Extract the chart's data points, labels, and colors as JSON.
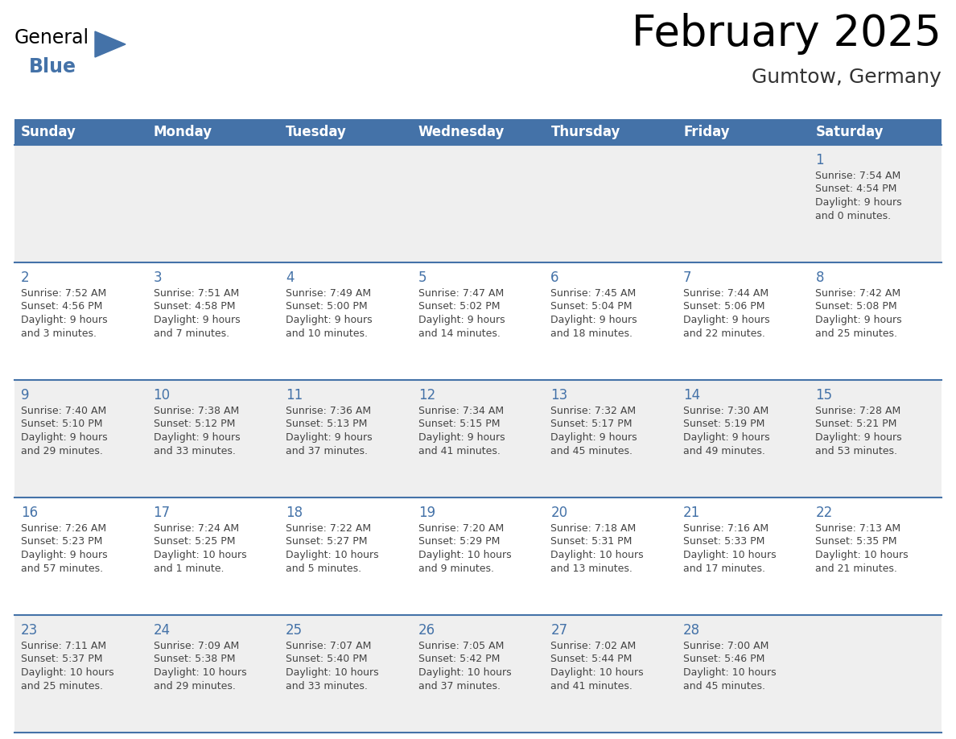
{
  "title": "February 2025",
  "subtitle": "Gumtow, Germany",
  "days_of_week": [
    "Sunday",
    "Monday",
    "Tuesday",
    "Wednesday",
    "Thursday",
    "Friday",
    "Saturday"
  ],
  "header_bg": "#4472a8",
  "header_text": "#ffffff",
  "row_bg_colors": [
    "#efefef",
    "#ffffff",
    "#efefef",
    "#ffffff",
    "#efefef"
  ],
  "day_number_color": "#4472a8",
  "text_color": "#444444",
  "line_color": "#4472a8",
  "title_fontsize": 38,
  "subtitle_fontsize": 18,
  "header_fontsize": 12,
  "day_num_fontsize": 12,
  "cell_text_fontsize": 9,
  "calendar_data": [
    [
      {
        "day": null,
        "sunrise": null,
        "sunset": null,
        "daylight": null
      },
      {
        "day": null,
        "sunrise": null,
        "sunset": null,
        "daylight": null
      },
      {
        "day": null,
        "sunrise": null,
        "sunset": null,
        "daylight": null
      },
      {
        "day": null,
        "sunrise": null,
        "sunset": null,
        "daylight": null
      },
      {
        "day": null,
        "sunrise": null,
        "sunset": null,
        "daylight": null
      },
      {
        "day": null,
        "sunrise": null,
        "sunset": null,
        "daylight": null
      },
      {
        "day": 1,
        "sunrise": "7:54 AM",
        "sunset": "4:54 PM",
        "daylight_l1": "Daylight: 9 hours",
        "daylight_l2": "and 0 minutes."
      }
    ],
    [
      {
        "day": 2,
        "sunrise": "7:52 AM",
        "sunset": "4:56 PM",
        "daylight_l1": "Daylight: 9 hours",
        "daylight_l2": "and 3 minutes."
      },
      {
        "day": 3,
        "sunrise": "7:51 AM",
        "sunset": "4:58 PM",
        "daylight_l1": "Daylight: 9 hours",
        "daylight_l2": "and 7 minutes."
      },
      {
        "day": 4,
        "sunrise": "7:49 AM",
        "sunset": "5:00 PM",
        "daylight_l1": "Daylight: 9 hours",
        "daylight_l2": "and 10 minutes."
      },
      {
        "day": 5,
        "sunrise": "7:47 AM",
        "sunset": "5:02 PM",
        "daylight_l1": "Daylight: 9 hours",
        "daylight_l2": "and 14 minutes."
      },
      {
        "day": 6,
        "sunrise": "7:45 AM",
        "sunset": "5:04 PM",
        "daylight_l1": "Daylight: 9 hours",
        "daylight_l2": "and 18 minutes."
      },
      {
        "day": 7,
        "sunrise": "7:44 AM",
        "sunset": "5:06 PM",
        "daylight_l1": "Daylight: 9 hours",
        "daylight_l2": "and 22 minutes."
      },
      {
        "day": 8,
        "sunrise": "7:42 AM",
        "sunset": "5:08 PM",
        "daylight_l1": "Daylight: 9 hours",
        "daylight_l2": "and 25 minutes."
      }
    ],
    [
      {
        "day": 9,
        "sunrise": "7:40 AM",
        "sunset": "5:10 PM",
        "daylight_l1": "Daylight: 9 hours",
        "daylight_l2": "and 29 minutes."
      },
      {
        "day": 10,
        "sunrise": "7:38 AM",
        "sunset": "5:12 PM",
        "daylight_l1": "Daylight: 9 hours",
        "daylight_l2": "and 33 minutes."
      },
      {
        "day": 11,
        "sunrise": "7:36 AM",
        "sunset": "5:13 PM",
        "daylight_l1": "Daylight: 9 hours",
        "daylight_l2": "and 37 minutes."
      },
      {
        "day": 12,
        "sunrise": "7:34 AM",
        "sunset": "5:15 PM",
        "daylight_l1": "Daylight: 9 hours",
        "daylight_l2": "and 41 minutes."
      },
      {
        "day": 13,
        "sunrise": "7:32 AM",
        "sunset": "5:17 PM",
        "daylight_l1": "Daylight: 9 hours",
        "daylight_l2": "and 45 minutes."
      },
      {
        "day": 14,
        "sunrise": "7:30 AM",
        "sunset": "5:19 PM",
        "daylight_l1": "Daylight: 9 hours",
        "daylight_l2": "and 49 minutes."
      },
      {
        "day": 15,
        "sunrise": "7:28 AM",
        "sunset": "5:21 PM",
        "daylight_l1": "Daylight: 9 hours",
        "daylight_l2": "and 53 minutes."
      }
    ],
    [
      {
        "day": 16,
        "sunrise": "7:26 AM",
        "sunset": "5:23 PM",
        "daylight_l1": "Daylight: 9 hours",
        "daylight_l2": "and 57 minutes."
      },
      {
        "day": 17,
        "sunrise": "7:24 AM",
        "sunset": "5:25 PM",
        "daylight_l1": "Daylight: 10 hours",
        "daylight_l2": "and 1 minute."
      },
      {
        "day": 18,
        "sunrise": "7:22 AM",
        "sunset": "5:27 PM",
        "daylight_l1": "Daylight: 10 hours",
        "daylight_l2": "and 5 minutes."
      },
      {
        "day": 19,
        "sunrise": "7:20 AM",
        "sunset": "5:29 PM",
        "daylight_l1": "Daylight: 10 hours",
        "daylight_l2": "and 9 minutes."
      },
      {
        "day": 20,
        "sunrise": "7:18 AM",
        "sunset": "5:31 PM",
        "daylight_l1": "Daylight: 10 hours",
        "daylight_l2": "and 13 minutes."
      },
      {
        "day": 21,
        "sunrise": "7:16 AM",
        "sunset": "5:33 PM",
        "daylight_l1": "Daylight: 10 hours",
        "daylight_l2": "and 17 minutes."
      },
      {
        "day": 22,
        "sunrise": "7:13 AM",
        "sunset": "5:35 PM",
        "daylight_l1": "Daylight: 10 hours",
        "daylight_l2": "and 21 minutes."
      }
    ],
    [
      {
        "day": 23,
        "sunrise": "7:11 AM",
        "sunset": "5:37 PM",
        "daylight_l1": "Daylight: 10 hours",
        "daylight_l2": "and 25 minutes."
      },
      {
        "day": 24,
        "sunrise": "7:09 AM",
        "sunset": "5:38 PM",
        "daylight_l1": "Daylight: 10 hours",
        "daylight_l2": "and 29 minutes."
      },
      {
        "day": 25,
        "sunrise": "7:07 AM",
        "sunset": "5:40 PM",
        "daylight_l1": "Daylight: 10 hours",
        "daylight_l2": "and 33 minutes."
      },
      {
        "day": 26,
        "sunrise": "7:05 AM",
        "sunset": "5:42 PM",
        "daylight_l1": "Daylight: 10 hours",
        "daylight_l2": "and 37 minutes."
      },
      {
        "day": 27,
        "sunrise": "7:02 AM",
        "sunset": "5:44 PM",
        "daylight_l1": "Daylight: 10 hours",
        "daylight_l2": "and 41 minutes."
      },
      {
        "day": 28,
        "sunrise": "7:00 AM",
        "sunset": "5:46 PM",
        "daylight_l1": "Daylight: 10 hours",
        "daylight_l2": "and 45 minutes."
      },
      {
        "day": null,
        "sunrise": null,
        "sunset": null,
        "daylight_l1": null,
        "daylight_l2": null
      }
    ]
  ]
}
